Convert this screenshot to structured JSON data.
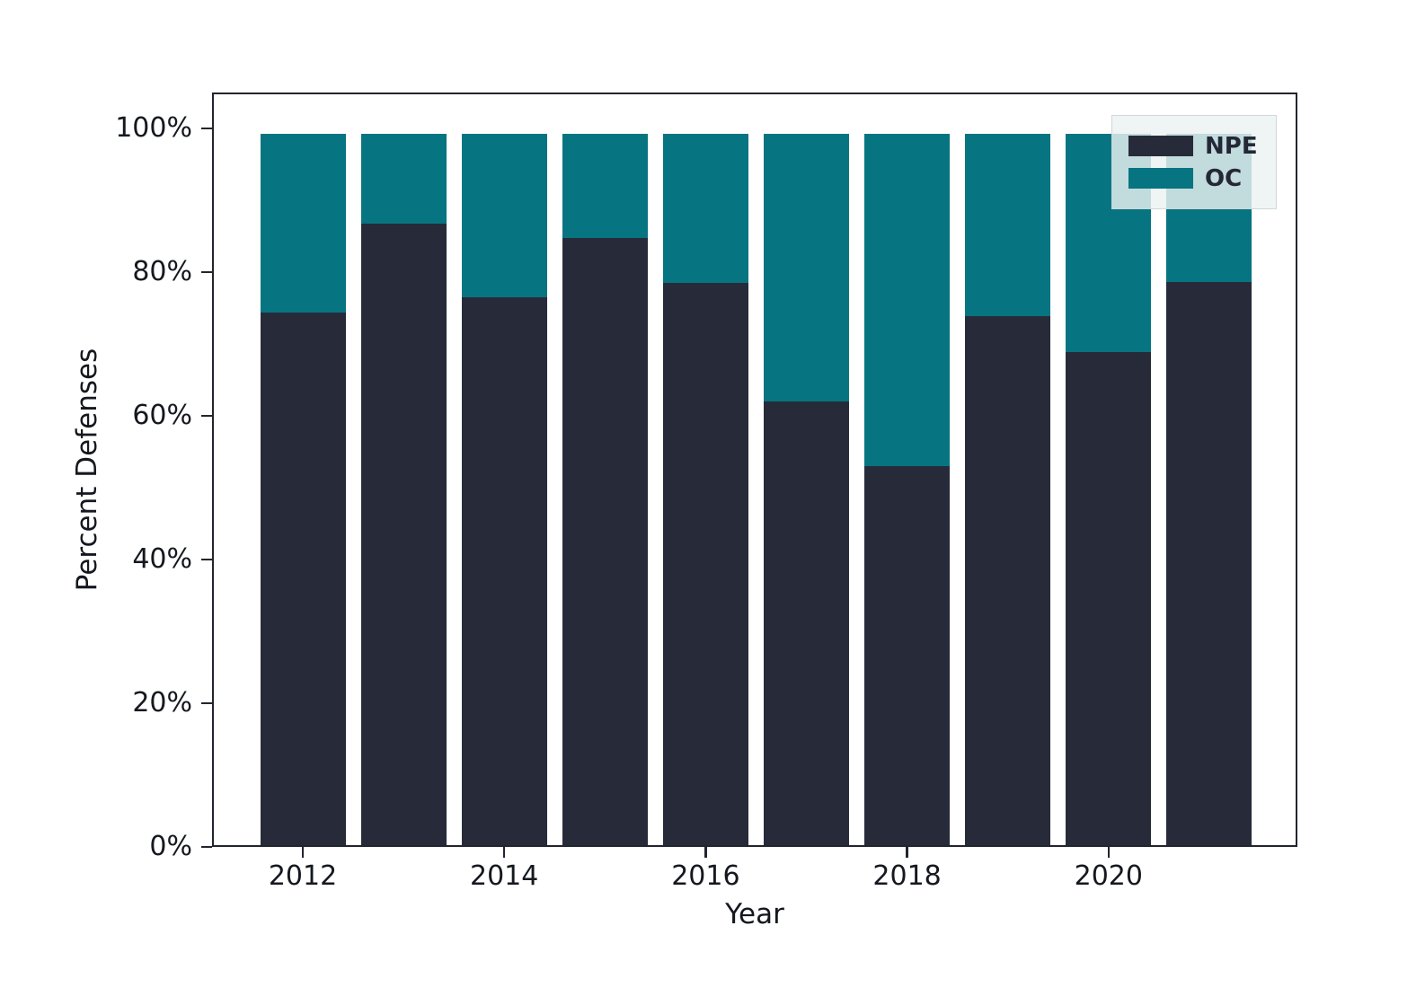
{
  "chart_data": {
    "type": "bar",
    "stacked": true,
    "title": "",
    "xlabel": "Year",
    "ylabel": "Percent Defenses",
    "categories": [
      "2012",
      "2013",
      "2014",
      "2015",
      "2016",
      "2017",
      "2018",
      "2019",
      "2020",
      "2021"
    ],
    "series": [
      {
        "name": "NPE",
        "color": "#272b39",
        "values": [
          74.4,
          86.8,
          76.5,
          84.8,
          78.5,
          62.0,
          53.0,
          73.9,
          68.9,
          78.6
        ]
      },
      {
        "name": "OC",
        "color": "#077481",
        "values": [
          24.9,
          12.5,
          22.8,
          14.5,
          20.8,
          37.3,
          46.3,
          25.4,
          30.4,
          20.7
        ]
      }
    ],
    "bar_total_percent": 99.3,
    "ylim": [
      0,
      105
    ],
    "ytick_values": [
      0,
      20,
      40,
      60,
      80,
      100
    ],
    "ytick_labels": [
      "0%",
      "20%",
      "40%",
      "60%",
      "80%",
      "100%"
    ],
    "xtick_labels": [
      "2012",
      "2014",
      "2016",
      "2018",
      "2020"
    ],
    "legend_position": "upper right",
    "legend_entries": [
      "NPE",
      "OC"
    ],
    "grid": false,
    "frame_color": "#22252e",
    "background": "#ffffff"
  }
}
